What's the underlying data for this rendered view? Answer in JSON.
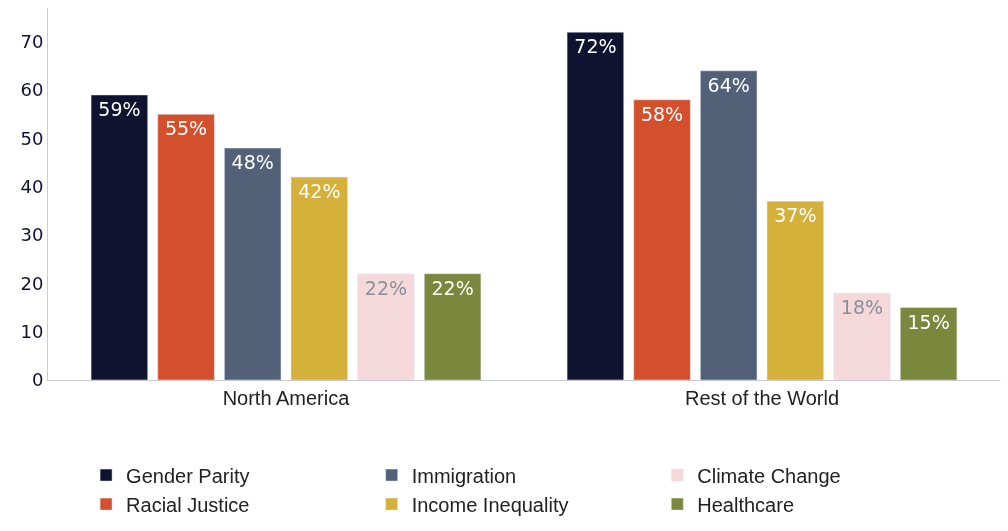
{
  "chart_data": {
    "type": "bar",
    "categories": [
      "North America",
      "Rest of the World"
    ],
    "series": [
      {
        "name": "Gender Parity",
        "color": "#0f1330",
        "values": [
          59,
          72
        ]
      },
      {
        "name": "Racial Justice",
        "color": "#d4502c",
        "values": [
          55,
          58
        ]
      },
      {
        "name": "Immigration",
        "color": "#526178",
        "values": [
          48,
          64
        ]
      },
      {
        "name": "Income Inequality",
        "color": "#d5b03a",
        "values": [
          42,
          37
        ]
      },
      {
        "name": "Climate Change",
        "color": "#f5d8da",
        "values": [
          22,
          18
        ]
      },
      {
        "name": "Healthcare",
        "color": "#7a873c",
        "values": [
          22,
          15
        ]
      }
    ],
    "value_labels": [
      [
        "59%",
        "72%"
      ],
      [
        "55%",
        "58%"
      ],
      [
        "48%",
        "64%"
      ],
      [
        "42%",
        "37%"
      ],
      [
        "22%",
        "18%"
      ],
      [
        "22%",
        "15%"
      ]
    ],
    "ylim": [
      0,
      77
    ],
    "yticks": [
      0,
      10,
      20,
      30,
      40,
      50,
      60,
      70
    ],
    "legend": "bottom"
  }
}
